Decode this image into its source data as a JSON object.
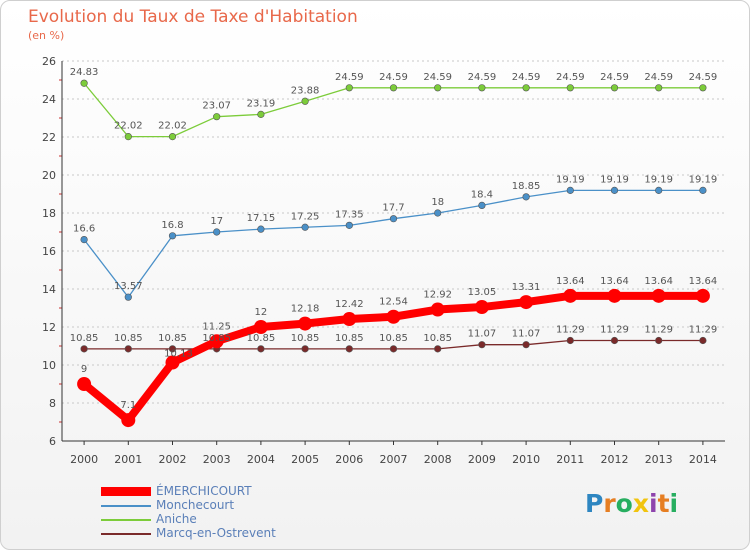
{
  "title": "Evolution du Taux de Taxe d'Habitation",
  "subtitle": "(en %)",
  "logo_text": "Proxiti",
  "chart_data": {
    "type": "line",
    "title": "Evolution du Taux de Taxe d'Habitation",
    "ylabel": "(en %)",
    "xlabel": "",
    "ylim": [
      6,
      26
    ],
    "yticks": [
      "6",
      "8",
      "10",
      "12",
      "14",
      "16",
      "18",
      "20",
      "22",
      "24",
      "26"
    ],
    "x": [
      "2000",
      "2001",
      "2002",
      "2003",
      "2004",
      "2005",
      "2006",
      "2007",
      "2008",
      "2009",
      "2010",
      "2011",
      "2012",
      "2013",
      "2014"
    ],
    "legend_position": "bottom-left",
    "grid": "dotted horizontal",
    "series": [
      {
        "name": "ÉMERCHICOURT",
        "color": "#ff0000",
        "values": [
          9,
          7.1,
          10.13,
          11.25,
          12,
          12.18,
          12.42,
          12.54,
          12.92,
          13.05,
          13.31,
          13.64,
          13.64,
          13.64,
          13.64
        ],
        "labels": [
          "9",
          "7.1",
          "10.13",
          "11.25",
          "12",
          "12.18",
          "12.42",
          "12.54",
          "12.92",
          "13.05",
          "13.31",
          "13.64",
          "13.64",
          "13.64",
          "13.64"
        ]
      },
      {
        "name": "Monchecourt",
        "color": "#4a90c8",
        "values": [
          16.6,
          13.57,
          16.8,
          17,
          17.15,
          17.25,
          17.35,
          17.7,
          18,
          18.4,
          18.85,
          19.19,
          19.19,
          19.19,
          19.19
        ],
        "labels": [
          "16.6",
          "13.57",
          "16.8",
          "17",
          "17.15",
          "17.25",
          "17.35",
          "17.7",
          "18",
          "18.4",
          "18.85",
          "19.19",
          "19.19",
          "19.19",
          "19.19"
        ]
      },
      {
        "name": "Aniche",
        "color": "#7ccc3a",
        "values": [
          24.83,
          22.02,
          22.02,
          23.07,
          23.19,
          23.88,
          24.59,
          24.59,
          24.59,
          24.59,
          24.59,
          24.59,
          24.59,
          24.59,
          24.59
        ],
        "labels": [
          "24.83",
          "22.02",
          "22.02",
          "23.07",
          "23.19",
          "23.88",
          "24.59",
          "24.59",
          "24.59",
          "24.59",
          "24.59",
          "24.59",
          "24.59",
          "24.59",
          "24.59"
        ]
      },
      {
        "name": "Marcq-en-Ostrevent",
        "color": "#7a2a2a",
        "values": [
          10.85,
          10.85,
          10.85,
          10.85,
          10.85,
          10.85,
          10.85,
          10.85,
          10.85,
          11.07,
          11.07,
          11.29,
          11.29,
          11.29,
          11.29
        ],
        "labels": [
          "10.85",
          "10.85",
          "10.85",
          "10.85",
          "10.85",
          "10.85",
          "10.85",
          "10.85",
          "10.85",
          "11.07",
          "11.07",
          "11.29",
          "11.29",
          "11.29",
          "11.29"
        ]
      }
    ]
  }
}
